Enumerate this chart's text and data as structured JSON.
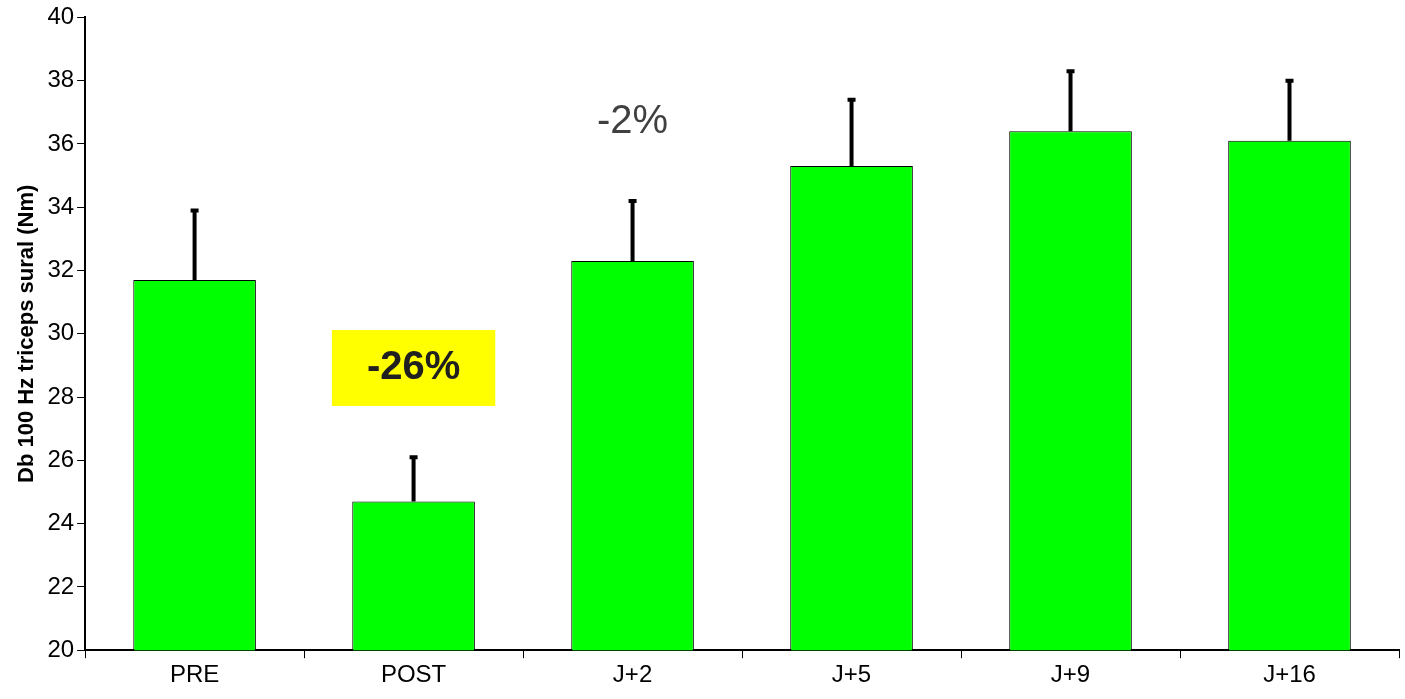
{
  "chart_data": {
    "type": "bar",
    "ylabel": "Db 100 Hz triceps sural (Nm)",
    "categories": [
      "PRE",
      "POST",
      "J+2",
      "J+5",
      "J+9",
      "J+16"
    ],
    "values": [
      31.7,
      24.7,
      32.3,
      35.3,
      36.4,
      36.1
    ],
    "errors": [
      [
        31.7,
        33.9
      ],
      [
        24.7,
        26.1
      ],
      [
        32.3,
        34.2
      ],
      [
        35.3,
        37.4
      ],
      [
        36.4,
        38.3
      ],
      [
        36.1,
        38.0
      ]
    ],
    "color": "#00ff00",
    "ylim": [
      20,
      40
    ],
    "yticks": [
      20,
      22,
      24,
      26,
      28,
      30,
      32,
      34,
      36,
      38,
      40
    ],
    "grid": false,
    "legend": false,
    "annotations": [
      "-26%",
      "-2%"
    ]
  }
}
